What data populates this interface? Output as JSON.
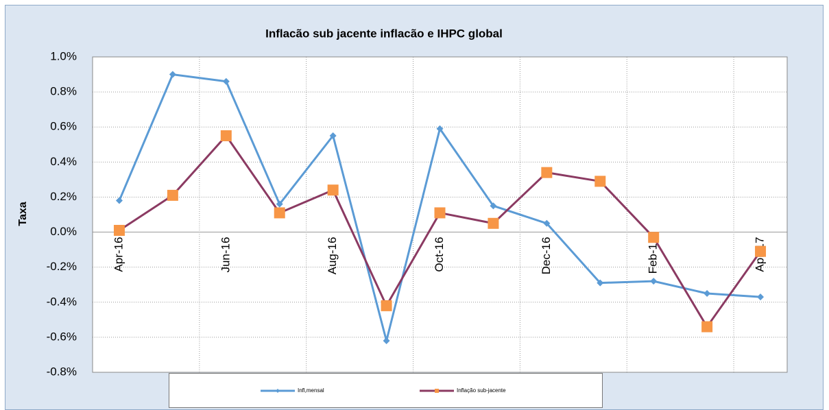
{
  "chart_data": {
    "type": "line",
    "title": "Inflacão sub jacente inflacão e IHPC global",
    "y_label": "Taxa",
    "categories": [
      "Apr-16",
      null,
      "Jun-16",
      null,
      "Aug-16",
      null,
      "Oct-16",
      null,
      "Dec-16",
      null,
      "Feb-17",
      null,
      "Apr-17"
    ],
    "series": [
      {
        "name": "Infl,mensal",
        "color": "#5b9bd5",
        "marker": "diamond",
        "marker_color": "#5b9bd5",
        "values": [
          0.18,
          0.9,
          0.86,
          0.16,
          0.55,
          -0.62,
          0.59,
          0.15,
          0.05,
          -0.29,
          -0.28,
          -0.35,
          -0.37
        ]
      },
      {
        "name": "Inflação sub-jacente",
        "color": "#8b3a62",
        "marker": "square",
        "marker_color": "#f79646",
        "values": [
          0.01,
          0.21,
          0.55,
          0.11,
          0.24,
          -0.42,
          0.11,
          0.05,
          0.34,
          0.29,
          -0.03,
          -0.54,
          -0.11
        ]
      }
    ],
    "ylim": [
      -0.8,
      1.0
    ],
    "yticks": [
      {
        "value": -0.8,
        "label": "-0.8%"
      },
      {
        "value": -0.6,
        "label": "-0.6%"
      },
      {
        "value": -0.4,
        "label": "-0.4%"
      },
      {
        "value": -0.2,
        "label": "-0.2%"
      },
      {
        "value": 0.0,
        "label": "0.0%"
      },
      {
        "value": 0.2,
        "label": "0.2%"
      },
      {
        "value": 0.4,
        "label": "0.4%"
      },
      {
        "value": 0.6,
        "label": "0.6%"
      },
      {
        "value": 0.8,
        "label": "0.8%"
      },
      {
        "value": 1.0,
        "label": "1.0%"
      }
    ],
    "grid": true,
    "legend": "bottom"
  }
}
